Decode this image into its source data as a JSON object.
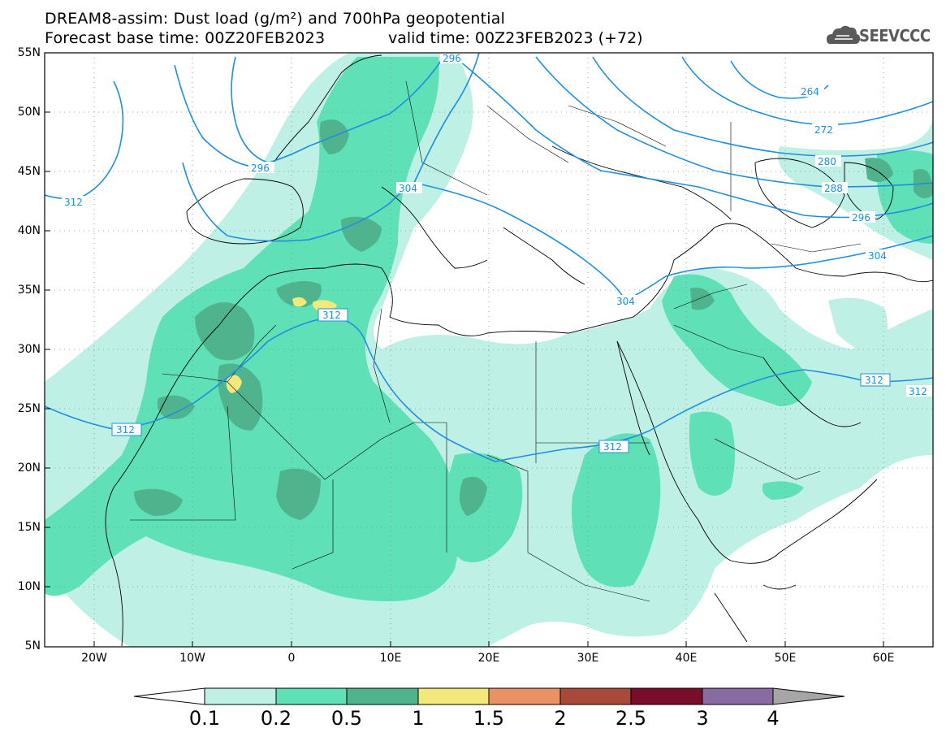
{
  "title_line1": "DREAM8-assim: Dust load (g/m²) and 700hPa geopotential",
  "title_line2": "Forecast base time: 00Z20FEB2023",
  "valid_time": "valid time: 00Z23FEB2023 (+72)",
  "logo_text": "SEEVCCC",
  "lat_labels": [
    "55N",
    "50N",
    "45N",
    "40N",
    "35N",
    "30N",
    "25N",
    "20N",
    "15N",
    "10N",
    "5N"
  ],
  "lon_labels": [
    "20W",
    "10W",
    "0",
    "10E",
    "20E",
    "30E",
    "40E",
    "50E",
    "60E"
  ],
  "contour_labels": [
    "296",
    "296",
    "312",
    "304",
    "312",
    "304",
    "312",
    "312",
    "312",
    "264",
    "272",
    "280",
    "288",
    "296",
    "304",
    "312"
  ],
  "colorbar": {
    "ticks": [
      "0.1",
      "0.2",
      "0.5",
      "1",
      "1.5",
      "2",
      "2.5",
      "3",
      "4"
    ],
    "colors": [
      "#bff0e6",
      "#5fe0b6",
      "#4fb48e",
      "#f2e87c",
      "#e89266",
      "#a84a3a",
      "#7a0e2a",
      "#8a6aa2"
    ],
    "under_color": "#ffffff",
    "over_color": "#a6a6a6"
  },
  "colors": {
    "contour": "#1e8fe0",
    "border": "#000000",
    "dust_low": "#bff0e6",
    "dust_mid": "#5fe0b6",
    "dust_high": "#4fb48e",
    "dust_peak": "#f2e87c"
  }
}
